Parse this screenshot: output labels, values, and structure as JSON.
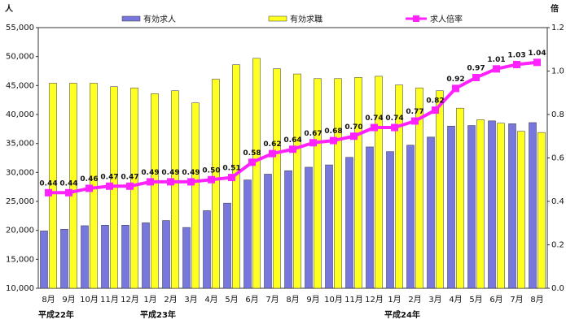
{
  "chart_data": {
    "type": "bar+line",
    "y_left_unit": "人",
    "y_right_unit": "倍",
    "ylim_left": [
      10000,
      55000
    ],
    "ylim_right": [
      0.0,
      1.2
    ],
    "y_left_ticks": [
      "10,000",
      "15,000",
      "20,000",
      "25,000",
      "30,000",
      "35,000",
      "40,000",
      "45,000",
      "50,000",
      "55,000"
    ],
    "y_right_ticks": [
      "0.0",
      "0.2",
      "0.4",
      "0.6",
      "0.8",
      "1.0",
      "1.2"
    ],
    "categories": [
      "8月",
      "9月",
      "10月",
      "11月",
      "12月",
      "1月",
      "2月",
      "3月",
      "4月",
      "5月",
      "6月",
      "7月",
      "8月",
      "9月",
      "10月",
      "11月",
      "12月",
      "1月",
      "2月",
      "3月",
      "4月",
      "5月",
      "6月",
      "7月",
      "8月"
    ],
    "year_labels": [
      {
        "index": 0,
        "text": "平成22年"
      },
      {
        "index": 5,
        "text": "平成23年"
      },
      {
        "index": 17,
        "text": "平成24年"
      }
    ],
    "series": [
      {
        "name": "有効求人",
        "kind": "bar",
        "axis": "left",
        "color": "#7777dd",
        "values": [
          19900,
          20200,
          20800,
          20900,
          20900,
          21300,
          21700,
          20500,
          23400,
          24700,
          28700,
          29700,
          30300,
          30900,
          31300,
          32600,
          34400,
          33600,
          34700,
          36100,
          38000,
          38100,
          38900,
          38400,
          38600
        ]
      },
      {
        "name": "有効求職",
        "kind": "bar",
        "axis": "left",
        "color": "#ffff22",
        "values": [
          45400,
          45400,
          45400,
          44800,
          44600,
          43600,
          44100,
          42000,
          46100,
          48600,
          49700,
          47900,
          47000,
          46200,
          46200,
          46400,
          46600,
          45100,
          44600,
          44100,
          41100,
          39100,
          38500,
          37100,
          36900
        ]
      },
      {
        "name": "求人倍率",
        "kind": "line",
        "axis": "right",
        "color": "#ff22ff",
        "values": [
          0.44,
          0.44,
          0.46,
          0.47,
          0.47,
          0.49,
          0.49,
          0.49,
          0.5,
          0.51,
          0.58,
          0.62,
          0.64,
          0.67,
          0.68,
          0.7,
          0.74,
          0.74,
          0.77,
          0.82,
          0.92,
          0.97,
          1.01,
          1.03,
          1.04
        ],
        "labels": [
          "0.44",
          "0.44",
          "0.46",
          "0.47",
          "0.47",
          "0.49",
          "0.49",
          "0.49",
          "0.50",
          "0.51",
          "0.58",
          "0.62",
          "0.64",
          "0.67",
          "0.68",
          "0.70",
          "0.74",
          "0.74",
          "0.77",
          "0.82",
          "0.92",
          "0.97",
          "1.01",
          "1.03",
          "1.04"
        ]
      }
    ],
    "grid": false,
    "legend_position": "top"
  }
}
